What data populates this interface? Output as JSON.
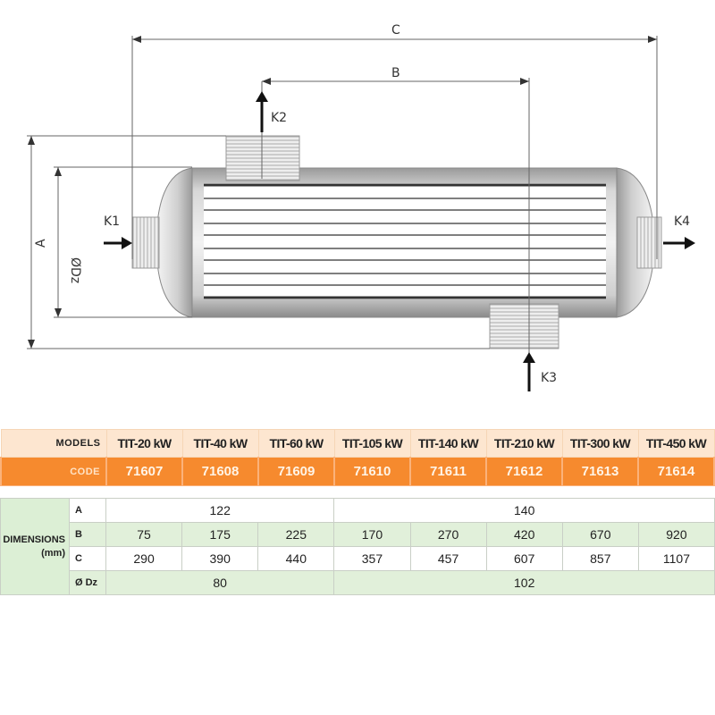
{
  "diagram": {
    "dimension_labels": {
      "c": "C",
      "b": "B",
      "a": "A",
      "dz": "ØDz"
    },
    "connection_labels": {
      "k1": "K1",
      "k2": "K2",
      "k3": "K3",
      "k4": "K4"
    }
  },
  "table": {
    "models_label": "MODELS",
    "code_label": "CODE",
    "models": [
      "TIT-20 kW",
      "TIT-40 kW",
      "TIT-60 kW",
      "TIT-105 kW",
      "TIT-140 kW",
      "TIT-210 kW",
      "TIT-300 kW",
      "TIT-450 kW"
    ],
    "codes": [
      "71607",
      "71608",
      "71609",
      "71610",
      "71611",
      "71612",
      "71613",
      "71614"
    ],
    "dimensions_label": "DIMENSIONS",
    "dimensions_unit": "(mm)",
    "rows": {
      "a": {
        "label": "A",
        "values": [
          "122",
          "140"
        ]
      },
      "b": {
        "label": "B",
        "values": [
          "75",
          "175",
          "225",
          "170",
          "270",
          "420",
          "670",
          "920"
        ]
      },
      "c": {
        "label": "C",
        "values": [
          "290",
          "390",
          "440",
          "357",
          "457",
          "607",
          "857",
          "1107"
        ]
      },
      "dz": {
        "label": "Ø Dz",
        "values": [
          "80",
          "102"
        ]
      }
    }
  },
  "colors": {
    "header_bg": "#fde6d0",
    "code_bg": "#f68a2e",
    "dims_green": "#e1f0da"
  }
}
